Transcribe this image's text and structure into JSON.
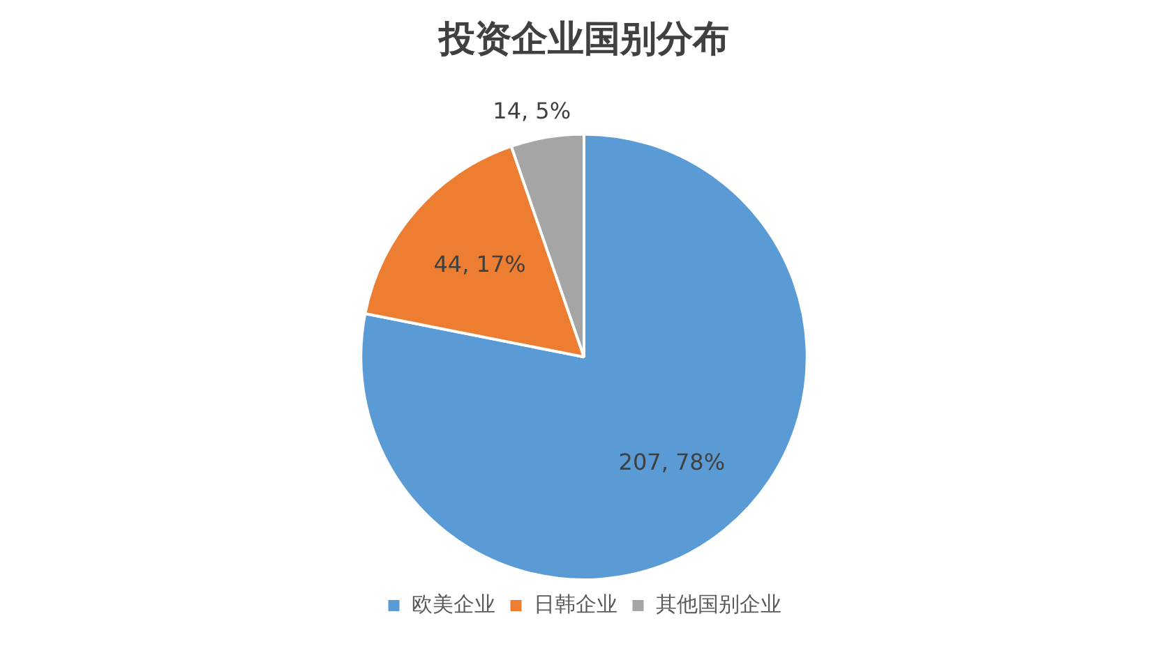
{
  "chart_data": {
    "type": "pie",
    "title": "投资企业国别分布",
    "categories": [
      "欧美企业",
      "日韩企业",
      "其他国别企业"
    ],
    "values": [
      207,
      44,
      14
    ],
    "colors": [
      "#5b9bd5",
      "#ed7d31",
      "#a5a5a5"
    ],
    "value_labels": [
      "207, 78%",
      "44, 17%",
      "14, 5%"
    ],
    "legend": "bottom"
  }
}
